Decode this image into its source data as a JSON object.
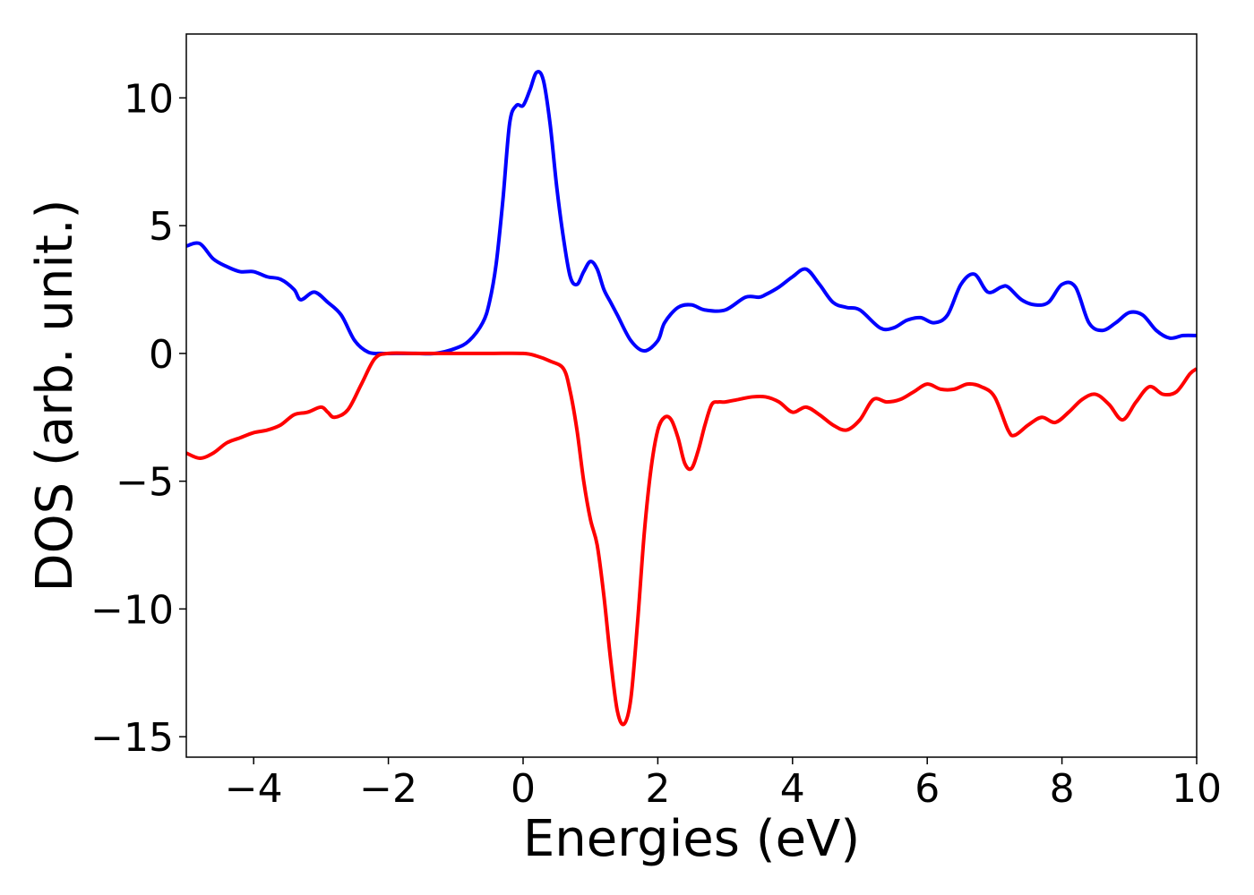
{
  "chart_data": {
    "type": "line",
    "title": "",
    "xlabel": "Energies (eV)",
    "ylabel": "DOS (arb. unit.)",
    "xlim": [
      -5,
      10
    ],
    "ylim": [
      -15.8,
      12.5
    ],
    "xticks": [
      -4,
      -2,
      0,
      2,
      4,
      6,
      8,
      10
    ],
    "yticks": [
      10,
      5,
      0,
      -5,
      -10,
      -15
    ],
    "xtick_labels": [
      "−4",
      "−2",
      "0",
      "2",
      "4",
      "6",
      "8",
      "10"
    ],
    "ytick_labels": [
      "10",
      "5",
      "0",
      "−5",
      "−10",
      "−15"
    ],
    "grid": false,
    "legend": false,
    "series": [
      {
        "color": "#0000ff",
        "x": [
          -5.0,
          -4.8,
          -4.6,
          -4.4,
          -4.2,
          -4.0,
          -3.8,
          -3.6,
          -3.4,
          -3.3,
          -3.1,
          -2.9,
          -2.7,
          -2.5,
          -2.3,
          -2.1,
          -1.9,
          -1.6,
          -1.3,
          -1.0,
          -0.8,
          -0.6,
          -0.5,
          -0.4,
          -0.3,
          -0.2,
          -0.1,
          0.0,
          0.1,
          0.2,
          0.3,
          0.4,
          0.5,
          0.6,
          0.7,
          0.8,
          0.9,
          1.0,
          1.1,
          1.2,
          1.3,
          1.4,
          1.6,
          1.8,
          2.0,
          2.1,
          2.3,
          2.5,
          2.7,
          3.0,
          3.3,
          3.5,
          3.6,
          3.8,
          4.0,
          4.2,
          4.4,
          4.6,
          4.8,
          5.0,
          5.3,
          5.5,
          5.7,
          5.9,
          6.1,
          6.3,
          6.5,
          6.7,
          6.9,
          7.1,
          7.2,
          7.4,
          7.6,
          7.8,
          8.0,
          8.2,
          8.4,
          8.6,
          8.8,
          9.0,
          9.2,
          9.4,
          9.6,
          9.8,
          10.0
        ],
        "y": [
          4.2,
          4.3,
          3.7,
          3.4,
          3.2,
          3.2,
          3.0,
          2.9,
          2.5,
          2.1,
          2.4,
          2.0,
          1.5,
          0.5,
          0.05,
          0.0,
          0.0,
          0.0,
          0.0,
          0.2,
          0.5,
          1.2,
          2.0,
          3.5,
          6.0,
          9.0,
          9.7,
          9.7,
          10.3,
          11.0,
          10.7,
          9.0,
          6.5,
          4.5,
          3.0,
          2.7,
          3.2,
          3.6,
          3.3,
          2.5,
          2.0,
          1.5,
          0.5,
          0.1,
          0.5,
          1.2,
          1.8,
          1.9,
          1.7,
          1.7,
          2.2,
          2.2,
          2.3,
          2.6,
          3.0,
          3.3,
          2.7,
          2.0,
          1.8,
          1.7,
          1.0,
          1.0,
          1.3,
          1.4,
          1.2,
          1.5,
          2.7,
          3.1,
          2.4,
          2.6,
          2.6,
          2.1,
          1.9,
          2.0,
          2.7,
          2.6,
          1.2,
          0.9,
          1.2,
          1.6,
          1.5,
          0.9,
          0.6,
          0.7,
          0.7
        ]
      },
      {
        "color": "#ff0000",
        "x": [
          -5.0,
          -4.8,
          -4.6,
          -4.4,
          -4.2,
          -4.0,
          -3.8,
          -3.6,
          -3.4,
          -3.2,
          -3.0,
          -2.9,
          -2.8,
          -2.6,
          -2.4,
          -2.2,
          -2.0,
          -1.6,
          -1.0,
          -0.5,
          0.0,
          0.2,
          0.4,
          0.6,
          0.7,
          0.8,
          0.9,
          1.0,
          1.1,
          1.2,
          1.3,
          1.4,
          1.5,
          1.6,
          1.7,
          1.8,
          1.9,
          2.0,
          2.1,
          2.2,
          2.3,
          2.4,
          2.5,
          2.6,
          2.7,
          2.8,
          2.9,
          3.0,
          3.2,
          3.4,
          3.6,
          3.8,
          4.0,
          4.2,
          4.4,
          4.6,
          4.8,
          5.0,
          5.2,
          5.4,
          5.6,
          5.8,
          6.0,
          6.2,
          6.4,
          6.6,
          6.8,
          7.0,
          7.2,
          7.3,
          7.5,
          7.7,
          7.9,
          8.1,
          8.3,
          8.5,
          8.7,
          8.9,
          9.1,
          9.3,
          9.5,
          9.7,
          9.9,
          10.0
        ],
        "y": [
          -3.9,
          -4.1,
          -3.9,
          -3.5,
          -3.3,
          -3.1,
          -3.0,
          -2.8,
          -2.4,
          -2.3,
          -2.1,
          -2.3,
          -2.5,
          -2.2,
          -1.2,
          -0.2,
          0.0,
          0.0,
          0.0,
          0.0,
          0.0,
          -0.1,
          -0.3,
          -0.6,
          -1.5,
          -3.0,
          -5.0,
          -6.5,
          -7.5,
          -9.5,
          -12.0,
          -14.0,
          -14.5,
          -13.5,
          -10.5,
          -7.0,
          -4.5,
          -3.0,
          -2.5,
          -2.6,
          -3.3,
          -4.3,
          -4.5,
          -3.8,
          -2.8,
          -2.0,
          -1.9,
          -1.9,
          -1.8,
          -1.7,
          -1.7,
          -1.9,
          -2.3,
          -2.1,
          -2.4,
          -2.8,
          -3.0,
          -2.6,
          -1.8,
          -1.9,
          -1.8,
          -1.5,
          -1.2,
          -1.4,
          -1.4,
          -1.2,
          -1.3,
          -1.7,
          -3.0,
          -3.2,
          -2.8,
          -2.5,
          -2.7,
          -2.3,
          -1.8,
          -1.6,
          -2.0,
          -2.6,
          -1.9,
          -1.3,
          -1.6,
          -1.5,
          -0.8,
          -0.6
        ]
      }
    ]
  }
}
